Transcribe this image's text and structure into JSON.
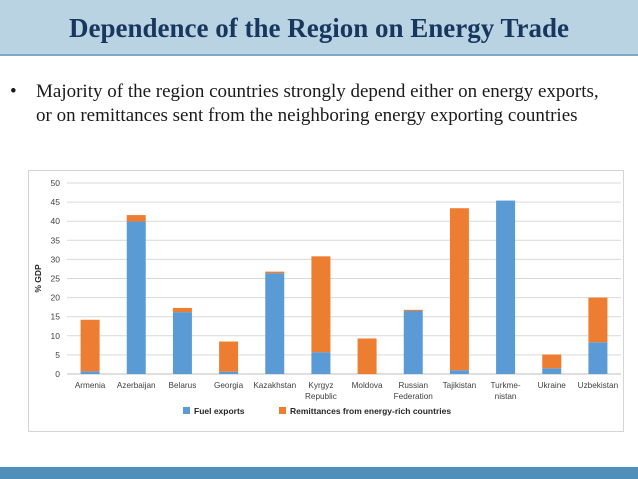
{
  "header": {
    "title": "Dependence of the Region on Energy Trade"
  },
  "bullet": {
    "marker": "•",
    "text": "Majority of the region countries strongly depend either on energy exports, or on remittances sent from the neighboring energy exporting countries"
  },
  "colors": {
    "fuel": "#5b9bd5",
    "remittances": "#ed7d31",
    "header_band": "#b9d3e3",
    "title_text": "#17375e",
    "bottom_band": "#4f8fb8"
  },
  "chart_data": {
    "type": "bar",
    "stacked": true,
    "title": "",
    "xlabel": "",
    "ylabel": "% GDP",
    "ylim": [
      0,
      50
    ],
    "yticks": [
      0,
      5,
      10,
      15,
      20,
      25,
      30,
      35,
      40,
      45,
      50
    ],
    "grid": true,
    "legend_position": "bottom",
    "categories": [
      [
        "Armenia"
      ],
      [
        "Azerbaijan"
      ],
      [
        "Belarus"
      ],
      [
        "Georgia"
      ],
      [
        "Kazakhstan"
      ],
      [
        "Kyrgyz",
        "Republic"
      ],
      [
        "Moldova"
      ],
      [
        "Russian",
        "Federation"
      ],
      [
        "Tajikistan"
      ],
      [
        "Turkme-",
        "nistan"
      ],
      [
        "Ukraine"
      ],
      [
        "Uzbekistan"
      ]
    ],
    "series": [
      {
        "name": "Fuel exports",
        "color": "#5b9bd5",
        "values": [
          0.7,
          39.9,
          16.2,
          0.6,
          26.4,
          5.7,
          0.0,
          16.5,
          1.0,
          45.4,
          1.5,
          8.3
        ]
      },
      {
        "name": "Remittances from energy-rich countries",
        "color": "#ed7d31",
        "values": [
          13.5,
          1.7,
          1.1,
          7.9,
          0.4,
          25.1,
          9.3,
          0.3,
          42.4,
          0.0,
          3.6,
          11.7
        ]
      }
    ]
  }
}
